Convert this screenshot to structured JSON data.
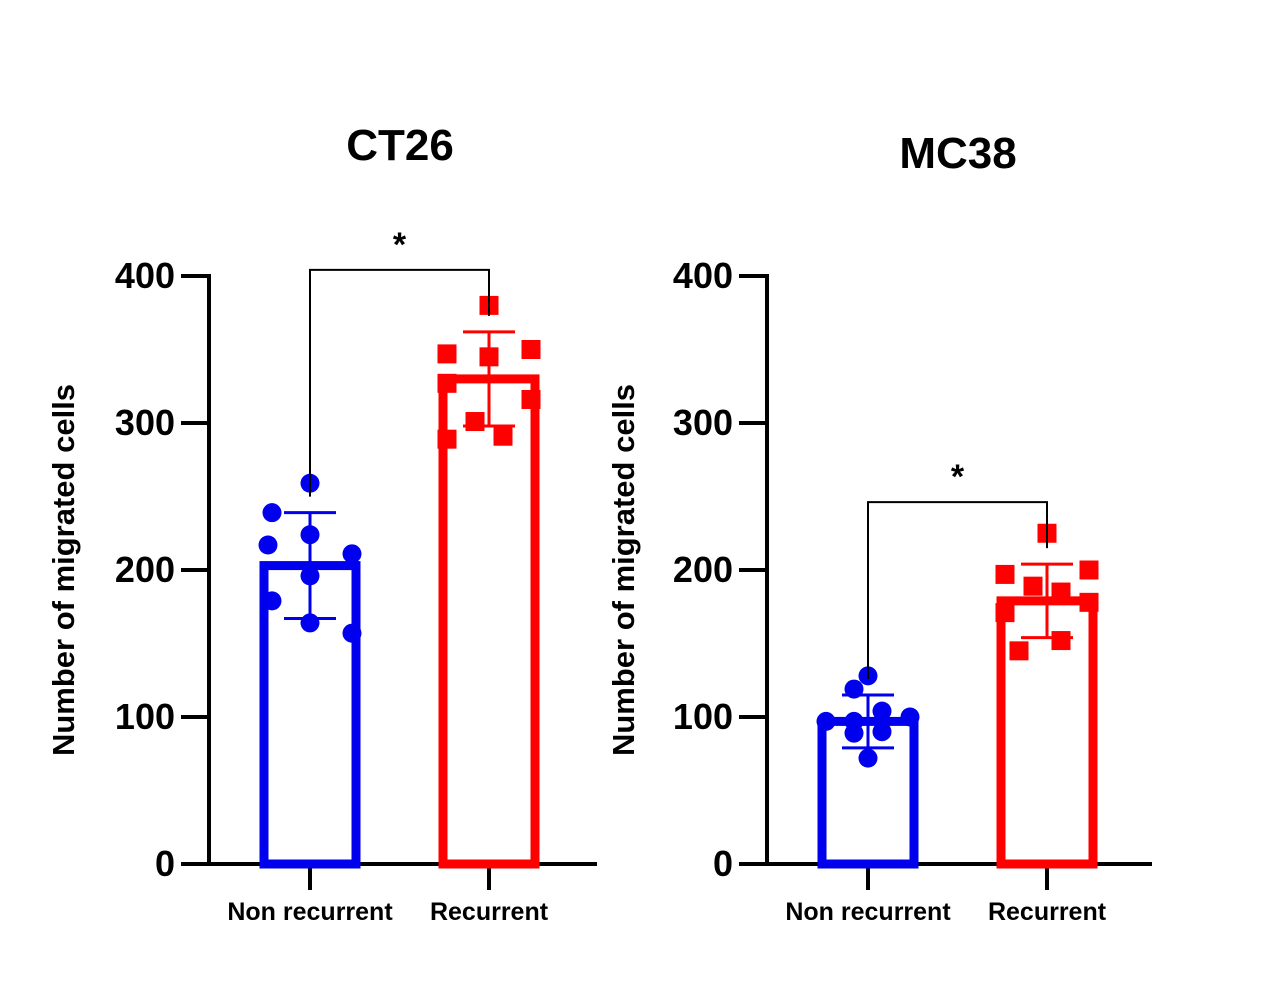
{
  "chart_data": [
    {
      "type": "bar",
      "title": "CT26",
      "ylabel": "Number of migrated cells",
      "ylim": [
        0,
        400
      ],
      "yticks": [
        0,
        100,
        200,
        300,
        400
      ],
      "categories": [
        "Non recurrent",
        "Recurrent"
      ],
      "values": [
        203,
        330
      ],
      "error_sd": [
        36,
        32
      ],
      "colors": [
        "#0000ee",
        "#ff0000"
      ],
      "markers": [
        "circle",
        "square"
      ],
      "points": [
        [
          259,
          239,
          217,
          224,
          211,
          196,
          179,
          164,
          157
        ],
        [
          380,
          347,
          350,
          345,
          327,
          316,
          301,
          289,
          291
        ]
      ],
      "significance": [
        {
          "between": [
            0,
            1
          ],
          "label": "*"
        }
      ]
    },
    {
      "type": "bar",
      "title": "MC38",
      "ylabel": "Number of migrated cells",
      "ylim": [
        0,
        400
      ],
      "yticks": [
        0,
        100,
        200,
        300,
        400
      ],
      "categories": [
        "Non recurrent",
        "Recurrent"
      ],
      "values": [
        97,
        179
      ],
      "error_sd": [
        18,
        25
      ],
      "colors": [
        "#0000ee",
        "#ff0000"
      ],
      "markers": [
        "circle",
        "square"
      ],
      "points": [
        [
          128,
          119,
          104,
          97,
          97,
          100,
          90,
          89,
          72
        ],
        [
          225,
          197,
          200,
          189,
          185,
          178,
          171,
          152,
          145
        ]
      ],
      "significance": [
        {
          "between": [
            0,
            1
          ],
          "label": "*"
        }
      ]
    }
  ]
}
